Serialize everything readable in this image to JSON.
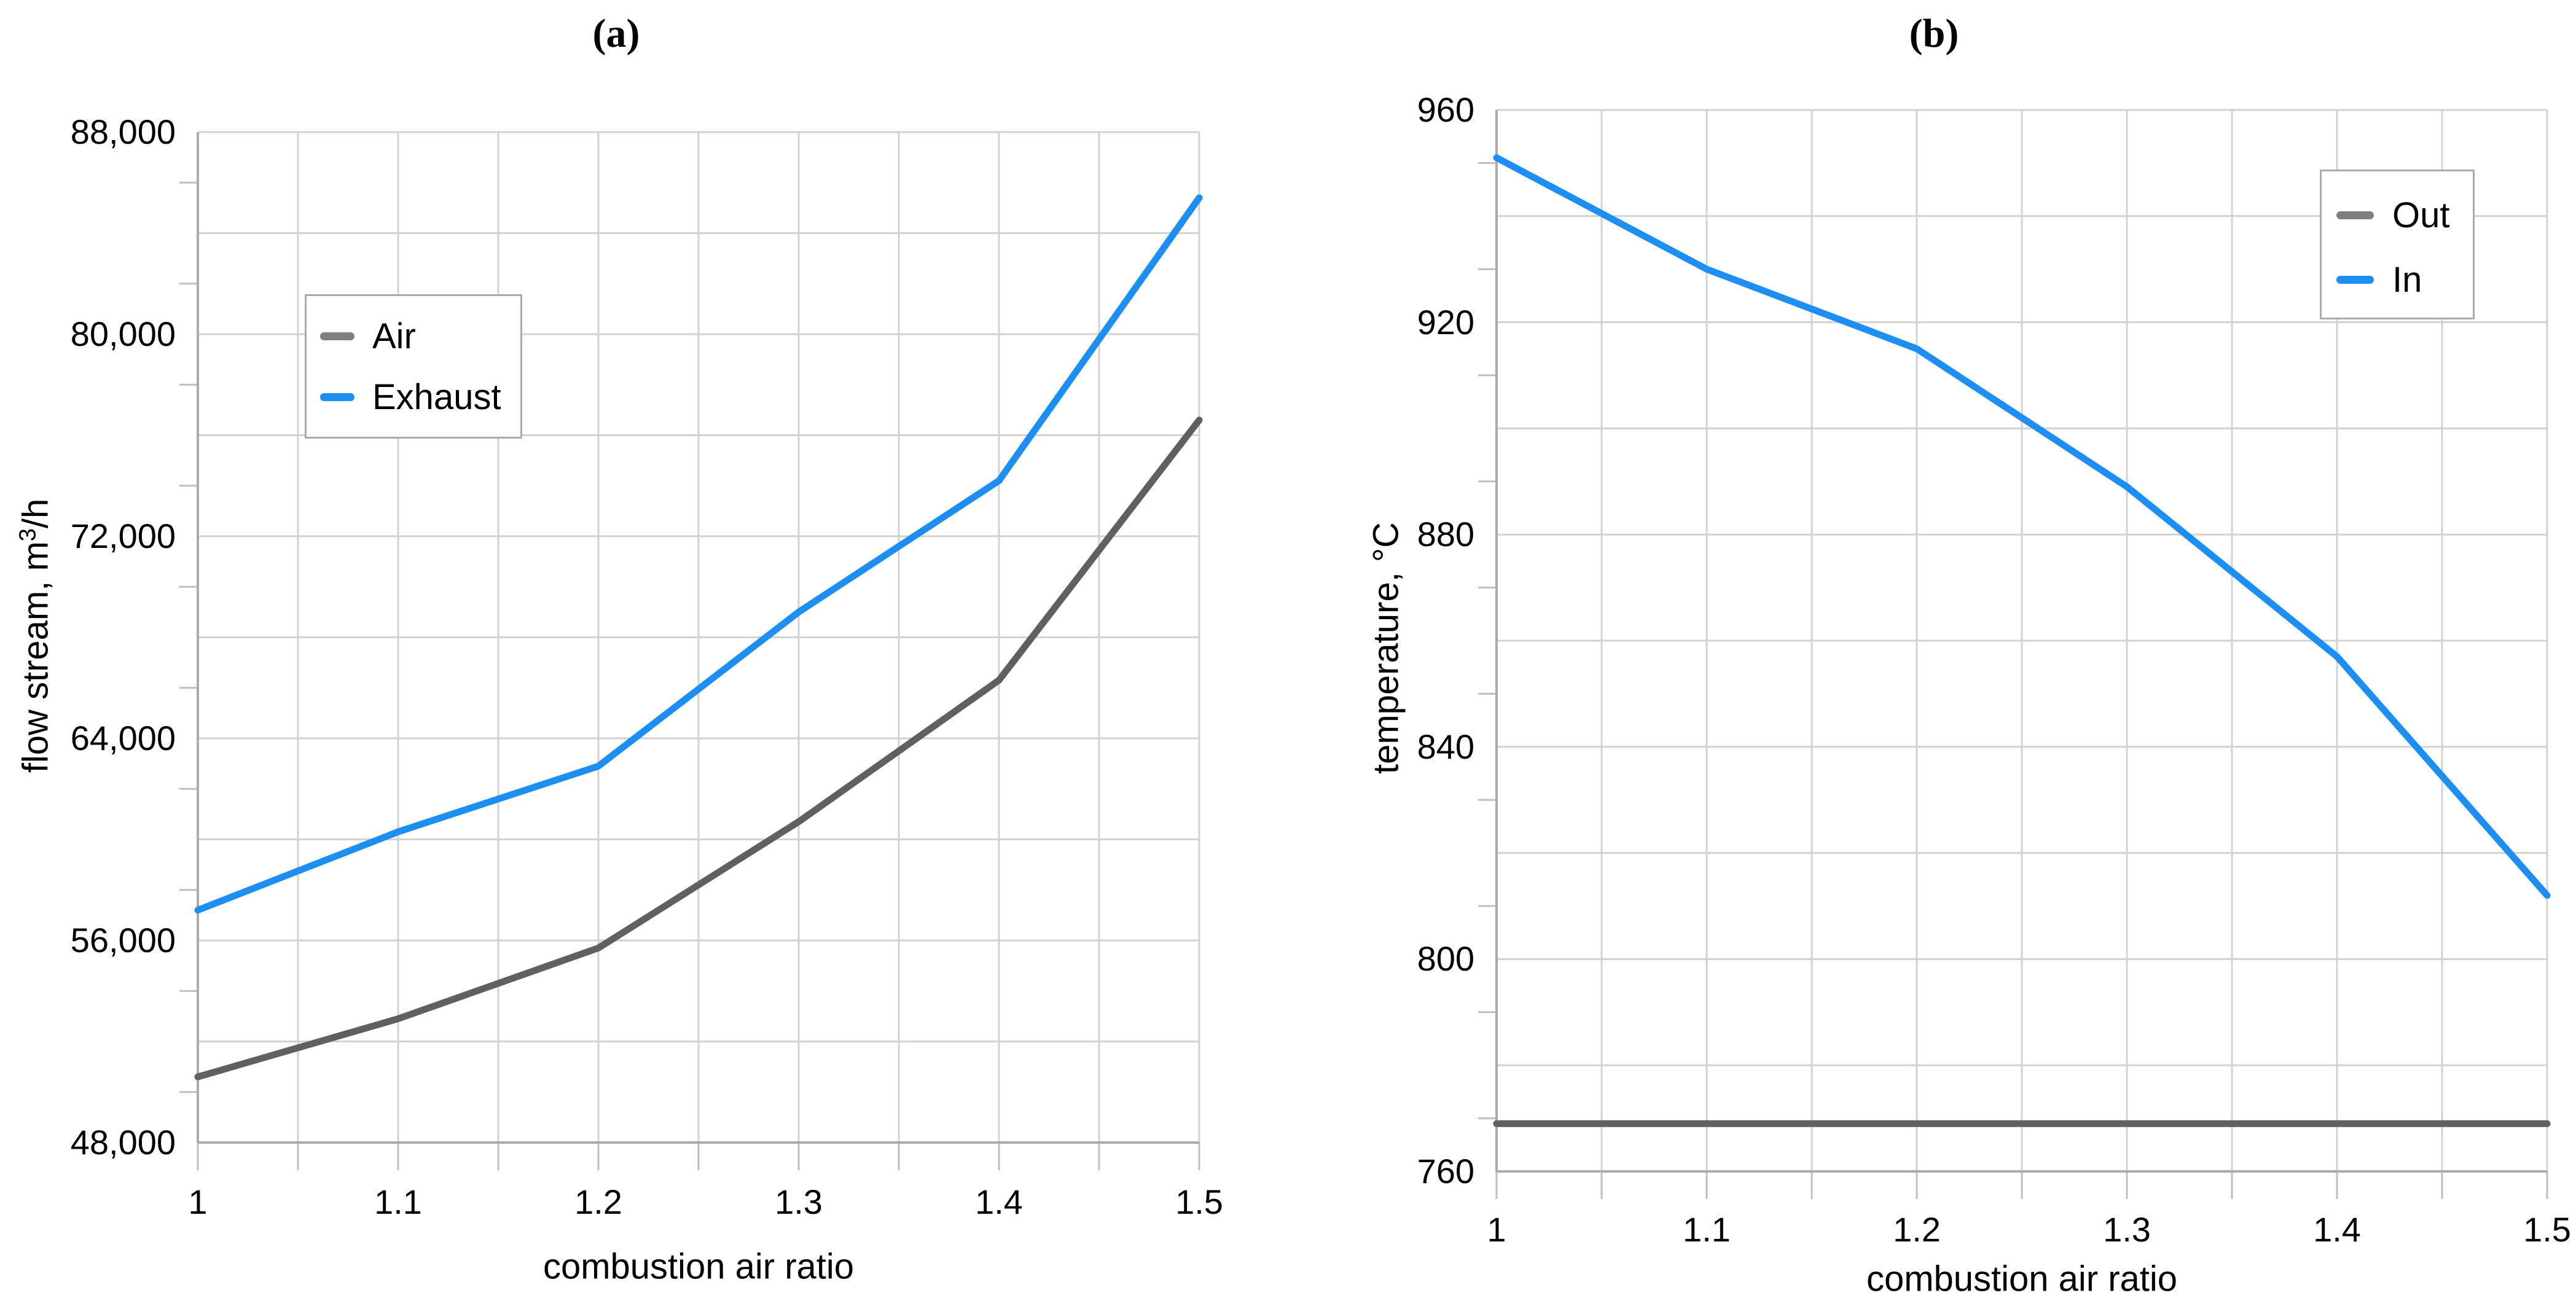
{
  "figure": {
    "background": "#ffffff",
    "text_color": "#000000",
    "gridline_color": "#d2d2d2",
    "axis_line_color": "#ababab",
    "tick_color": "#bfbfbf"
  },
  "chart_data": [
    {
      "id": "a",
      "type": "line",
      "title": "(a)",
      "xlabel": "combustion air ratio",
      "ylabel": "flow stream, m³/h",
      "ylabel_parts": {
        "prefix": "flow stream, m",
        "sup": "3",
        "suffix": "/h"
      },
      "x": [
        1,
        1.1,
        1.2,
        1.3,
        1.4,
        1.5
      ],
      "series": [
        {
          "name": "Air",
          "color": "#606060",
          "legend_color": "#7f7f7f",
          "values": [
            50600,
            52900,
            55700,
            60700,
            66300,
            76600
          ]
        },
        {
          "name": "Exhaust",
          "color": "#1e8ff2",
          "legend_color": "#1e8ff2",
          "values": [
            57200,
            60300,
            62900,
            69000,
            74200,
            85400
          ]
        }
      ],
      "xlim": [
        1,
        1.5
      ],
      "ylim": [
        48000,
        88000
      ],
      "x_grid_step": 0.05,
      "y_grid_step": 4000,
      "y_minor_tick_step": 2000,
      "grid": true,
      "legend": {
        "position": "inside-upper-left"
      },
      "x_tick_labels": [
        {
          "v": 1,
          "text": "1"
        },
        {
          "v": 1.1,
          "text": "1.1"
        },
        {
          "v": 1.2,
          "text": "1.2"
        },
        {
          "v": 1.3,
          "text": "1.3"
        },
        {
          "v": 1.4,
          "text": "1.4"
        },
        {
          "v": 1.5,
          "text": "1.5"
        }
      ],
      "y_tick_labels": [
        {
          "v": 48000,
          "text": "48,000"
        },
        {
          "v": 56000,
          "text": "56,000"
        },
        {
          "v": 64000,
          "text": "64,000"
        },
        {
          "v": 72000,
          "text": "72,000"
        },
        {
          "v": 80000,
          "text": "80,000"
        },
        {
          "v": 88000,
          "text": "88,000"
        }
      ]
    },
    {
      "id": "b",
      "type": "line",
      "title": "(b)",
      "xlabel": "combustion air ratio",
      "ylabel": "temperature, °C",
      "ylabel_parts": {
        "prefix": "temperature, °C",
        "sup": "",
        "suffix": ""
      },
      "x": [
        1,
        1.1,
        1.2,
        1.3,
        1.4,
        1.5
      ],
      "series": [
        {
          "name": "Out",
          "color": "#606060",
          "legend_color": "#7f7f7f",
          "values": [
            769,
            769,
            769,
            769,
            769,
            769
          ]
        },
        {
          "name": "In",
          "color": "#1e8ff2",
          "legend_color": "#1e8ff2",
          "values": [
            951,
            930,
            915,
            889,
            857,
            812
          ]
        }
      ],
      "xlim": [
        1,
        1.5
      ],
      "ylim": [
        760,
        960
      ],
      "x_grid_step": 0.05,
      "y_grid_step": 20,
      "y_minor_tick_step": 10,
      "grid": true,
      "legend": {
        "position": "inside-upper-right"
      },
      "x_tick_labels": [
        {
          "v": 1,
          "text": "1"
        },
        {
          "v": 1.1,
          "text": "1.1"
        },
        {
          "v": 1.2,
          "text": "1.2"
        },
        {
          "v": 1.3,
          "text": "1.3"
        },
        {
          "v": 1.4,
          "text": "1.4"
        },
        {
          "v": 1.5,
          "text": "1.5"
        }
      ],
      "y_tick_labels": [
        {
          "v": 760,
          "text": "760"
        },
        {
          "v": 800,
          "text": "800"
        },
        {
          "v": 840,
          "text": "840"
        },
        {
          "v": 880,
          "text": "880"
        },
        {
          "v": 920,
          "text": "920"
        },
        {
          "v": 960,
          "text": "960"
        }
      ]
    }
  ]
}
